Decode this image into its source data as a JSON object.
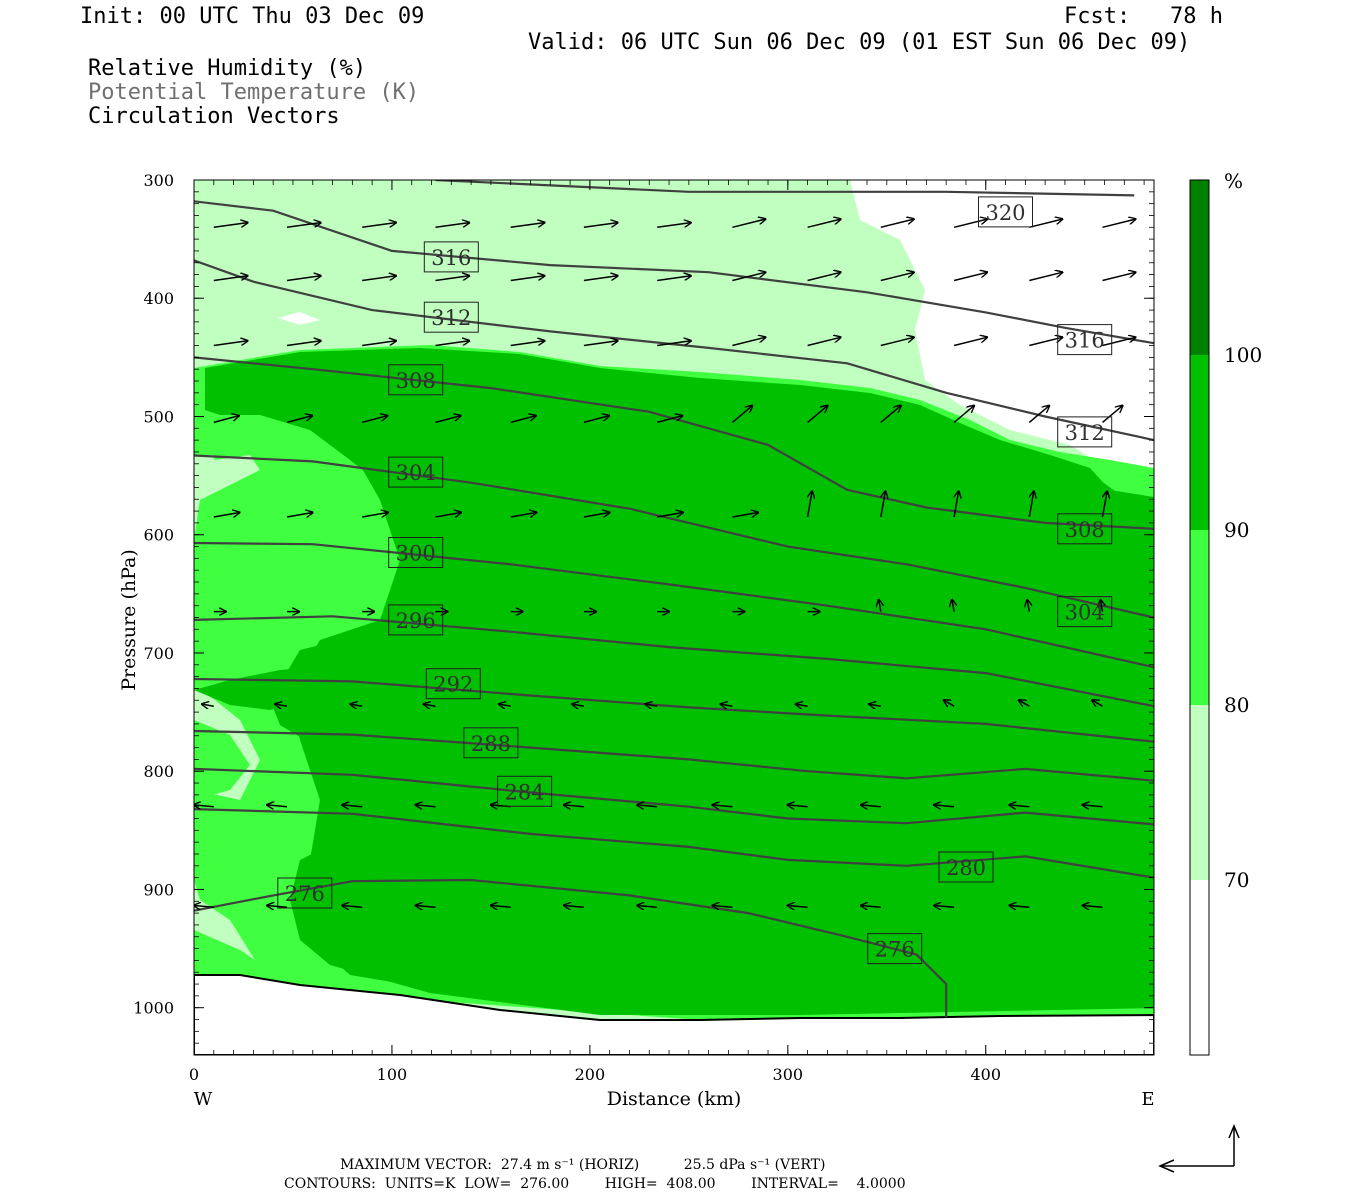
{
  "header": {
    "init": "Init: 00 UTC Thu 03 Dec 09",
    "fcst": "Fcst:   78 h",
    "valid": "Valid: 06 UTC Sun 06 Dec 09 (01 EST Sun 06 Dec 09)"
  },
  "titles": {
    "rh": "Relative Humidity (%)",
    "theta": "Potential Temperature (K)",
    "vectors": "Circulation Vectors"
  },
  "footer": {
    "max_vector": "MAXIMUM VECTOR:  27.4 m s⁻¹ (HORIZ)          25.5 dPa s⁻¹ (VERT)",
    "contours": "CONTOURS:  UNITS=K  LOW=  276.00        HIGH=  408.00        INTERVAL=    4.0000"
  },
  "colors": {
    "rh_70": "#c0ffc0",
    "rh_80": "#40ff40",
    "rh_90": "#00c000",
    "rh_100": "#008000",
    "contour": "#404040"
  },
  "chart_data": {
    "type": "cross-section",
    "xlabel": "Distance (km)",
    "ylabel": "Pressure (hPa)",
    "xlim": [
      0,
      485
    ],
    "ylim": [
      1040,
      300
    ],
    "x_ticks": [
      0,
      100,
      200,
      300,
      400
    ],
    "y_ticks": [
      300,
      400,
      500,
      600,
      700,
      800,
      900,
      1000
    ],
    "x_end_labels": {
      "left": "W",
      "right": "E"
    },
    "colorbar": {
      "unit": "%",
      "levels": [
        70,
        80,
        90,
        100
      ]
    },
    "contour_labels": [
      {
        "value": "320",
        "x": 410,
        "p": 327
      },
      {
        "value": "316",
        "x": 130,
        "p": 365
      },
      {
        "value": "312",
        "x": 130,
        "p": 416
      },
      {
        "value": "316",
        "x": 450,
        "p": 435
      },
      {
        "value": "308",
        "x": 112,
        "p": 469
      },
      {
        "value": "312",
        "x": 450,
        "p": 513
      },
      {
        "value": "304",
        "x": 112,
        "p": 547
      },
      {
        "value": "308",
        "x": 450,
        "p": 595
      },
      {
        "value": "300",
        "x": 112,
        "p": 615
      },
      {
        "value": "304",
        "x": 450,
        "p": 665
      },
      {
        "value": "296",
        "x": 112,
        "p": 672
      },
      {
        "value": "292",
        "x": 131,
        "p": 726
      },
      {
        "value": "288",
        "x": 150,
        "p": 776
      },
      {
        "value": "284",
        "x": 167,
        "p": 817
      },
      {
        "value": "280",
        "x": 390,
        "p": 881
      },
      {
        "value": "276",
        "x": 56,
        "p": 903
      },
      {
        "value": "276",
        "x": 354,
        "p": 950
      }
    ],
    "theta_contours": [
      {
        "value": 320,
        "pts": [
          [
            122,
            300
          ],
          [
            250,
            310
          ],
          [
            380,
            310
          ],
          [
            475,
            313
          ]
        ]
      },
      {
        "value": 316,
        "pts": [
          [
            0,
            318
          ],
          [
            40,
            326
          ],
          [
            100,
            360
          ],
          [
            180,
            372
          ],
          [
            260,
            378
          ],
          [
            340,
            395
          ],
          [
            400,
            412
          ],
          [
            440,
            425
          ],
          [
            485,
            438
          ]
        ]
      },
      {
        "value": 312,
        "pts": [
          [
            0,
            368
          ],
          [
            30,
            386
          ],
          [
            90,
            410
          ],
          [
            180,
            428
          ],
          [
            260,
            442
          ],
          [
            330,
            455
          ],
          [
            380,
            480
          ],
          [
            430,
            500
          ],
          [
            485,
            520
          ]
        ]
      },
      {
        "value": 308,
        "pts": [
          [
            0,
            450
          ],
          [
            60,
            460
          ],
          [
            150,
            476
          ],
          [
            230,
            496
          ],
          [
            290,
            524
          ],
          [
            330,
            562
          ],
          [
            370,
            577
          ],
          [
            430,
            590
          ],
          [
            485,
            595
          ]
        ]
      },
      {
        "value": 304,
        "pts": [
          [
            0,
            533
          ],
          [
            60,
            538
          ],
          [
            140,
            556
          ],
          [
            220,
            578
          ],
          [
            300,
            610
          ],
          [
            360,
            625
          ],
          [
            420,
            645
          ],
          [
            485,
            670
          ]
        ]
      },
      {
        "value": 300,
        "pts": [
          [
            0,
            607
          ],
          [
            60,
            608
          ],
          [
            160,
            625
          ],
          [
            240,
            642
          ],
          [
            320,
            660
          ],
          [
            400,
            680
          ],
          [
            485,
            712
          ]
        ]
      },
      {
        "value": 296,
        "pts": [
          [
            0,
            672
          ],
          [
            70,
            669
          ],
          [
            160,
            682
          ],
          [
            240,
            695
          ],
          [
            320,
            705
          ],
          [
            400,
            717
          ],
          [
            485,
            745
          ]
        ]
      },
      {
        "value": 292,
        "pts": [
          [
            0,
            722
          ],
          [
            80,
            724
          ],
          [
            170,
            736
          ],
          [
            250,
            746
          ],
          [
            320,
            753
          ],
          [
            400,
            760
          ],
          [
            485,
            775
          ]
        ]
      },
      {
        "value": 288,
        "pts": [
          [
            0,
            766
          ],
          [
            80,
            769
          ],
          [
            170,
            780
          ],
          [
            250,
            790
          ],
          [
            310,
            800
          ],
          [
            360,
            806
          ],
          [
            420,
            798
          ],
          [
            485,
            808
          ]
        ]
      },
      {
        "value": 284,
        "pts": [
          [
            0,
            798
          ],
          [
            80,
            803
          ],
          [
            170,
            818
          ],
          [
            250,
            830
          ],
          [
            300,
            840
          ],
          [
            360,
            844
          ],
          [
            420,
            835
          ],
          [
            485,
            845
          ]
        ]
      },
      {
        "value": 280,
        "pts": [
          [
            0,
            832
          ],
          [
            80,
            836
          ],
          [
            170,
            853
          ],
          [
            250,
            864
          ],
          [
            300,
            875
          ],
          [
            360,
            880
          ],
          [
            420,
            872
          ],
          [
            485,
            890
          ]
        ]
      },
      {
        "value": 276,
        "pts": [
          [
            0,
            918
          ],
          [
            40,
            905
          ],
          [
            80,
            893
          ],
          [
            140,
            892
          ],
          [
            220,
            905
          ],
          [
            280,
            920
          ],
          [
            330,
            940
          ],
          [
            365,
            955
          ],
          [
            380,
            980
          ],
          [
            380,
            1008
          ]
        ]
      }
    ]
  }
}
